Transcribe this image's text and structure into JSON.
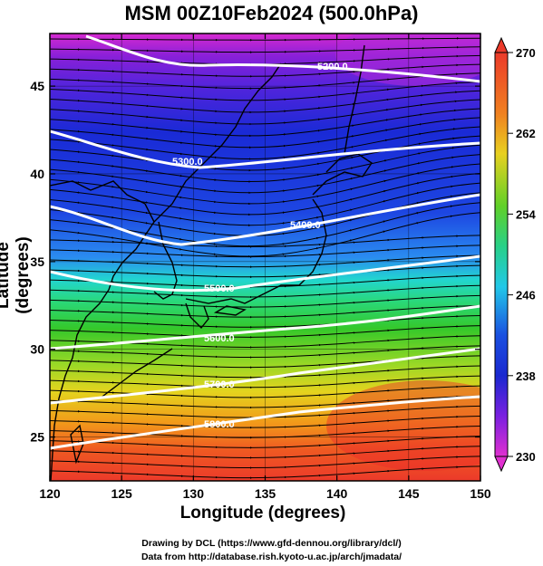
{
  "title": "MSM 00Z10Feb2024 (500.0hPa)",
  "xaxis": {
    "label": "Longitude (degrees)",
    "ticks": [
      120,
      125,
      130,
      135,
      140,
      145,
      150
    ],
    "range": [
      120,
      150
    ]
  },
  "yaxis": {
    "label": "Latitude  (degrees)",
    "ticks": [
      25,
      30,
      35,
      40,
      45
    ],
    "range": [
      22.5,
      48
    ]
  },
  "colorbar": {
    "ticks": [
      270,
      262,
      254,
      246,
      238,
      230
    ],
    "range": [
      230,
      270
    ],
    "colors": [
      "#d62ad0",
      "#7a20e0",
      "#1a2ad6",
      "#2a78f0",
      "#22ccef",
      "#28d89a",
      "#30d02a",
      "#9ad826",
      "#e2d920",
      "#f29a1a",
      "#ef4a22"
    ]
  },
  "contours": {
    "color": "#ffffff",
    "lines": [
      {
        "label": "5200.0"
      },
      {
        "label": "5300.0"
      },
      {
        "label": "5400.0"
      },
      {
        "label": "5500.0"
      },
      {
        "label": "5600.0"
      },
      {
        "label": "5700.0"
      },
      {
        "label": "5800.0"
      }
    ]
  },
  "credits": [
    "Drawing by DCL (https://www.gfd-dennou.org/library/dcl/)",
    "Data from http://database.rish.kyoto-u.ac.jp/arch/jmadata/"
  ]
}
